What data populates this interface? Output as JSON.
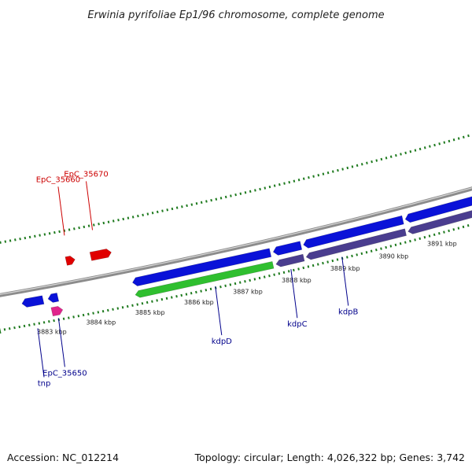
{
  "title": "Erwinia pyrifoliae Ep1/96 chromosome, complete genome",
  "footer": {
    "accession": "Accession: NC_012214",
    "summary": "Topology: circular; Length: 4,026,322 bp; Genes: 3,742"
  },
  "scale": {
    "start_kbp": 3882.0,
    "end_kbp": 3892.0
  },
  "kbp_labels": [
    {
      "kbp": 3883,
      "text": "3883 kbp"
    },
    {
      "kbp": 3884,
      "text": "3884 kbp"
    },
    {
      "kbp": 3885,
      "text": "3885 kbp"
    },
    {
      "kbp": 3886,
      "text": "3886 kbp"
    },
    {
      "kbp": 3887,
      "text": "3887 kbp"
    },
    {
      "kbp": 3888,
      "text": "3888 kbp"
    },
    {
      "kbp": 3889,
      "text": "3889 kbp"
    },
    {
      "kbp": 3890,
      "text": "3890 kbp"
    },
    {
      "kbp": 3891,
      "text": "3891 kbp"
    }
  ],
  "colors": {
    "backbone": "#8c8c8c",
    "cds": "#0a12d8",
    "gene": "#2fbf2f",
    "operon": "#4a3d8f",
    "other_forward": "#e00000",
    "other_reverse": "#e0248c",
    "tick": "#1e7a1e",
    "label_blue": "#00008b",
    "label_red": "#cc0000"
  },
  "features": [
    {
      "name": "tnp",
      "track": "reverse",
      "kind": "cds",
      "start_kbp": 3882.55,
      "end_kbp": 3882.98,
      "strand": "-"
    },
    {
      "name": "",
      "track": "reverse",
      "kind": "cds",
      "start_kbp": 3883.08,
      "end_kbp": 3883.28,
      "strand": "-"
    },
    {
      "name": "EpC_35650",
      "track": "reverse2",
      "kind": "other_reverse",
      "start_kbp": 3883.1,
      "end_kbp": 3883.32,
      "strand": "+"
    },
    {
      "name": "EpC_35660",
      "track": "forward2",
      "kind": "other_forward",
      "start_kbp": 3883.6,
      "end_kbp": 3883.78,
      "strand": "+"
    },
    {
      "name": "EpC_35670",
      "track": "forward2",
      "kind": "other_forward",
      "start_kbp": 3884.1,
      "end_kbp": 3884.52,
      "strand": "+"
    },
    {
      "name": "",
      "track": "reverse",
      "kind": "cds",
      "start_kbp": 3884.8,
      "end_kbp": 3887.62,
      "strand": "-"
    },
    {
      "name": "kdpD",
      "track": "reverse2",
      "kind": "gene",
      "start_kbp": 3884.8,
      "end_kbp": 3887.62,
      "strand": "-"
    },
    {
      "name": "",
      "track": "reverse",
      "kind": "cds",
      "start_kbp": 3887.68,
      "end_kbp": 3888.25,
      "strand": "-"
    },
    {
      "name": "kdpC",
      "track": "reverse2",
      "kind": "operon",
      "start_kbp": 3887.68,
      "end_kbp": 3888.25,
      "strand": "-"
    },
    {
      "name": "",
      "track": "reverse",
      "kind": "cds",
      "start_kbp": 3888.3,
      "end_kbp": 3890.35,
      "strand": "-"
    },
    {
      "name": "kdpB",
      "track": "reverse2",
      "kind": "operon",
      "start_kbp": 3888.3,
      "end_kbp": 3890.35,
      "strand": "-"
    },
    {
      "name": "",
      "track": "reverse",
      "kind": "cds",
      "start_kbp": 3890.4,
      "end_kbp": 3892.5,
      "strand": "-"
    },
    {
      "name": "",
      "track": "reverse2",
      "kind": "operon",
      "start_kbp": 3890.4,
      "end_kbp": 3892.5,
      "strand": "-"
    }
  ],
  "gene_labels": [
    {
      "text": "EpC_35670",
      "color": "red",
      "kbp": 3884.25,
      "track": "forward2"
    },
    {
      "text": "EpC_35660",
      "color": "red",
      "kbp": 3883.68,
      "track": "forward2"
    },
    {
      "text": "tnp",
      "color": "blue",
      "kbp": 3882.75,
      "track": "reverse"
    },
    {
      "text": "EpC_35650",
      "color": "blue",
      "kbp": 3883.2,
      "track": "reverse2"
    },
    {
      "text": "kdpD",
      "color": "blue",
      "kbp": 3886.4,
      "track": "reverse2"
    },
    {
      "text": "kdpC",
      "color": "blue",
      "kbp": 3887.95,
      "track": "reverse2"
    },
    {
      "text": "kdpB",
      "color": "blue",
      "kbp": 3889.0,
      "track": "reverse2"
    }
  ]
}
